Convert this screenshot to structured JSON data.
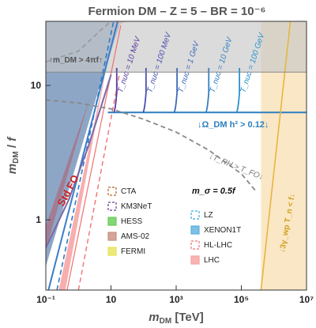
{
  "chart_data": {
    "type": "area",
    "title": "Fermion DM  –  Z = 5 –  BR = 10⁻⁶",
    "xlabel": "m_DM   [TeV]",
    "ylabel": "m_DM / f",
    "x_scale": "log",
    "y_scale": "log",
    "xlim": [
      0.1,
      10000000
    ],
    "ylim": [
      0.3,
      30
    ],
    "x_ticks": [
      {
        "value": 0.1,
        "label": "10⁻¹"
      },
      {
        "value": 10,
        "label": "10"
      },
      {
        "value": 1000,
        "label": "10³"
      },
      {
        "value": 100000,
        "label": "10⁵"
      },
      {
        "value": 10000000,
        "label": "10⁷"
      }
    ],
    "y_ticks": [
      {
        "value": 1,
        "label": "1"
      },
      {
        "value": 10,
        "label": "10"
      }
    ],
    "regions": [
      {
        "label": "↑m_DM > 4πf↑",
        "y_min": 12.57,
        "color": "#c0c0c0"
      },
      {
        "label": "↓Ω_DM h² > 0.12↓",
        "y_min": 6.3,
        "color": "#2a7fc0"
      },
      {
        "label": "↓3γ_wp T_n < f↓",
        "x_min": 400000,
        "color": "#f5d9a8"
      },
      {
        "label": "Std FO",
        "color": "#7a96bb"
      }
    ],
    "annotations": [
      {
        "text": "↓T_RH > T_FO↓"
      },
      {
        "text": "m_σ = 0.5f"
      }
    ],
    "t_nuc_lines": [
      {
        "label": "T_nuc = 10 MeV",
        "x": 12,
        "color": "#5a3ea0"
      },
      {
        "label": "T_nuc = 100 MeV",
        "x": 95,
        "color": "#4a50b0"
      },
      {
        "label": "T_nuc = 1 GeV",
        "x": 850,
        "color": "#3d6cbc"
      },
      {
        "label": "T_nuc = 10 GeV",
        "x": 8000,
        "color": "#3480c4"
      },
      {
        "label": "T_nuc = 100 GeV",
        "x": 70000,
        "color": "#2a92cc"
      }
    ],
    "legend_left": [
      {
        "label": "CTA",
        "style": "dashed-box",
        "color": "#b5651d"
      },
      {
        "label": "KM3NeT",
        "style": "dashed-box",
        "color": "#6a3d9a"
      },
      {
        "label": "HESS",
        "style": "filled",
        "color": "#66cc55"
      },
      {
        "label": "AMS-02",
        "style": "filled",
        "color": "#c89080"
      },
      {
        "label": "FERMI",
        "style": "filled",
        "color": "#e6e35a"
      }
    ],
    "legend_right": [
      {
        "label": "LZ",
        "style": "dashed-box",
        "color": "#3aa8d8"
      },
      {
        "label": "XENON1T",
        "style": "filled",
        "color": "#5ab0e0"
      },
      {
        "label": "HL-LHC",
        "style": "dashed-box",
        "color": "#f07070"
      },
      {
        "label": "LHC",
        "style": "filled",
        "color": "#f7a0a0"
      }
    ]
  }
}
